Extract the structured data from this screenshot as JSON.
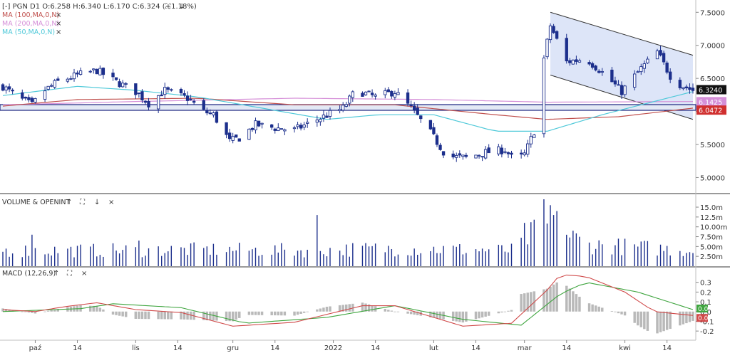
{
  "header": {
    "symbol": "PGN",
    "interval": "D1",
    "open": "O:6.258",
    "high": "H:6.340",
    "low": "L:6.170",
    "close": "C:6.324",
    "change": "(+1.18%)",
    "collapse_glyph": "[-]",
    "fit_glyph": "⛶",
    "down_glyph": "↓"
  },
  "indicators": [
    {
      "label": "MA (100,MA,0,N)",
      "color": "#c0504d"
    },
    {
      "label": "MA (200,MA,0,N)",
      "color": "#d58fd8"
    },
    {
      "label": "MA (50,MA,0,N)",
      "color": "#4fc9d9"
    }
  ],
  "close_glyph": "×",
  "volume_panel": {
    "title": "VOLUME & OPENINT",
    "up": "↑",
    "fit": "⛶",
    "down": "↓",
    "close": "×"
  },
  "macd_panel": {
    "title": "MACD (12,26,9)",
    "up": "↑",
    "fit": "⛶",
    "close": "×"
  },
  "colors": {
    "bar": "#1c2f8c",
    "ma100": "#c0504d",
    "ma200": "#d58fd8",
    "ma50": "#4fc9d9",
    "macd": "#d04a4a",
    "signal": "#3fa53f",
    "hist": "#b9b9b9",
    "channel_fill": "#d7e1f7",
    "support": "#1a237e"
  },
  "chart_data": [
    {
      "type": "candlestick",
      "y_axis_side": "right",
      "ylim": [
        4.8,
        7.6
      ],
      "yticks": [
        "7.5000",
        "7.0000",
        "6.5000",
        "6.0000",
        "5.5000",
        "5.0000"
      ],
      "x_ticks": [
        "paź",
        "14",
        "lis",
        "14",
        "gru",
        "14",
        "2022",
        "14",
        "lut",
        "14",
        "mar",
        "14",
        "kwi",
        "14"
      ],
      "x_tick_dates": [
        "2021-10-01",
        "2021-10-14",
        "2021-11-01",
        "2021-11-14",
        "2021-12-01",
        "2021-12-14",
        "2022-01-01",
        "2022-01-14",
        "2022-02-01",
        "2022-02-14",
        "2022-03-01",
        "2022-03-14",
        "2022-04-01",
        "2022-04-14"
      ],
      "x_range_dates": [
        "2021-09-21",
        "2022-04-22"
      ],
      "close_anchors": [
        {
          "date": "2021-09-21",
          "close": 6.38
        },
        {
          "date": "2021-09-26",
          "close": 6.2
        },
        {
          "date": "2021-09-30",
          "close": 6.1
        },
        {
          "date": "2021-10-04",
          "close": 6.32
        },
        {
          "date": "2021-10-08",
          "close": 6.45
        },
        {
          "date": "2021-10-14",
          "close": 6.55
        },
        {
          "date": "2021-10-20",
          "close": 6.62
        },
        {
          "date": "2021-10-26",
          "close": 6.45
        },
        {
          "date": "2021-11-01",
          "close": 6.3
        },
        {
          "date": "2021-11-05",
          "close": 6.12
        },
        {
          "date": "2021-11-10",
          "close": 6.32
        },
        {
          "date": "2021-11-17",
          "close": 6.2
        },
        {
          "date": "2021-11-22",
          "close": 6.0
        },
        {
          "date": "2021-11-25",
          "close": 5.95
        },
        {
          "date": "2021-11-30",
          "close": 5.55
        },
        {
          "date": "2021-12-03",
          "close": 5.6
        },
        {
          "date": "2021-12-08",
          "close": 5.8
        },
        {
          "date": "2021-12-14",
          "close": 5.75
        },
        {
          "date": "2021-12-20",
          "close": 5.72
        },
        {
          "date": "2021-12-28",
          "close": 5.9
        },
        {
          "date": "2022-01-04",
          "close": 6.05
        },
        {
          "date": "2022-01-08",
          "close": 6.32
        },
        {
          "date": "2022-01-14",
          "close": 6.22
        },
        {
          "date": "2022-01-20",
          "close": 6.3
        },
        {
          "date": "2022-01-25",
          "close": 6.05
        },
        {
          "date": "2022-01-31",
          "close": 5.68
        },
        {
          "date": "2022-02-05",
          "close": 5.32
        },
        {
          "date": "2022-02-11",
          "close": 5.3
        },
        {
          "date": "2022-02-17",
          "close": 5.38
        },
        {
          "date": "2022-02-23",
          "close": 5.42
        },
        {
          "date": "2022-02-26",
          "close": 5.25
        },
        {
          "date": "2022-03-01",
          "close": 5.35
        },
        {
          "date": "2022-03-04",
          "close": 5.7
        },
        {
          "date": "2022-03-07",
          "close": 6.8
        },
        {
          "date": "2022-03-09",
          "close": 7.3
        },
        {
          "date": "2022-03-14",
          "close": 6.75
        },
        {
          "date": "2022-03-20",
          "close": 6.8
        },
        {
          "date": "2022-03-26",
          "close": 6.55
        },
        {
          "date": "2022-03-31",
          "close": 6.3
        },
        {
          "date": "2022-04-06",
          "close": 6.65
        },
        {
          "date": "2022-04-11",
          "close": 6.9
        },
        {
          "date": "2022-04-16",
          "close": 6.45
        },
        {
          "date": "2022-04-22",
          "close": 6.32
        }
      ],
      "ma50_anchors": [
        {
          "date": "2021-09-21",
          "value": 6.24
        },
        {
          "date": "2021-10-14",
          "value": 6.38
        },
        {
          "date": "2021-11-01",
          "value": 6.32
        },
        {
          "date": "2021-11-20",
          "value": 6.22
        },
        {
          "date": "2021-12-10",
          "value": 6.05
        },
        {
          "date": "2021-12-30",
          "value": 5.88
        },
        {
          "date": "2022-01-15",
          "value": 5.95
        },
        {
          "date": "2022-02-01",
          "value": 5.95
        },
        {
          "date": "2022-02-20",
          "value": 5.7
        },
        {
          "date": "2022-03-08",
          "value": 5.7
        },
        {
          "date": "2022-03-25",
          "value": 5.95
        },
        {
          "date": "2022-04-10",
          "value": 6.15
        },
        {
          "date": "2022-04-22",
          "value": 6.3
        }
      ],
      "ma100_anchors": [
        {
          "date": "2021-09-21",
          "value": 6.08
        },
        {
          "date": "2021-10-14",
          "value": 6.18
        },
        {
          "date": "2021-11-20",
          "value": 6.2
        },
        {
          "date": "2021-12-20",
          "value": 6.1
        },
        {
          "date": "2022-01-20",
          "value": 6.1
        },
        {
          "date": "2022-02-20",
          "value": 5.95
        },
        {
          "date": "2022-03-08",
          "value": 5.88
        },
        {
          "date": "2022-03-30",
          "value": 5.92
        },
        {
          "date": "2022-04-22",
          "value": 6.05
        }
      ],
      "ma200_anchors": [
        {
          "date": "2021-09-21",
          "value": 6.1
        },
        {
          "date": "2021-11-01",
          "value": 6.15
        },
        {
          "date": "2021-12-20",
          "value": 6.2
        },
        {
          "date": "2022-02-01",
          "value": 6.18
        },
        {
          "date": "2022-03-08",
          "value": 6.14
        },
        {
          "date": "2022-04-22",
          "value": 6.15
        }
      ],
      "support_level": 6.06,
      "channel": {
        "upper": [
          {
            "date": "2022-03-09",
            "value": 7.5
          },
          {
            "date": "2022-04-22",
            "value": 6.85
          }
        ],
        "lower": [
          {
            "date": "2022-03-09",
            "value": 6.55
          },
          {
            "date": "2022-04-22",
            "value": 5.88
          }
        ]
      },
      "price_labels": [
        {
          "text": "6.3240",
          "value": 6.324,
          "color": "#111111"
        },
        {
          "text": "6.1425",
          "value": 6.1425,
          "color": "#d58fd8"
        },
        {
          "text": "6.0472",
          "value": 6.0472,
          "color": "#d0302f"
        }
      ]
    },
    {
      "type": "bar",
      "title": "VOLUME & OPENINT",
      "ylim": [
        0,
        17
      ],
      "yticks": [
        "15.0m",
        "12.5m",
        "10.00m",
        "7.50m",
        "5.00m",
        "2.50m"
      ],
      "ytick_values": [
        15,
        12.5,
        10,
        7.5,
        5,
        2.5
      ],
      "volume_units": "millions",
      "volume_anchors": [
        {
          "date": "2021-09-21",
          "value": 4.0
        },
        {
          "date": "2021-10-15",
          "value": 4.0
        },
        {
          "date": "2021-11-25",
          "value": 4.2
        },
        {
          "date": "2021-12-23",
          "value": 4.0
        },
        {
          "date": "2022-01-20",
          "value": 4.5
        },
        {
          "date": "2022-02-25",
          "value": 4.0
        },
        {
          "date": "2022-03-07",
          "value": 10.5
        },
        {
          "date": "2022-03-12",
          "value": 9.0
        },
        {
          "date": "2022-03-20",
          "value": 5.5
        },
        {
          "date": "2022-04-22",
          "value": 4.0
        }
      ],
      "volume_spikes": [
        {
          "date": "2021-09-30",
          "value": 8.0
        },
        {
          "date": "2021-10-10",
          "value": 8.0
        },
        {
          "date": "2021-11-02",
          "value": 6.5
        },
        {
          "date": "2021-11-28",
          "value": 7.5
        },
        {
          "date": "2021-12-27",
          "value": 13.0
        },
        {
          "date": "2022-03-01",
          "value": 11.0
        },
        {
          "date": "2022-03-07",
          "value": 17.0
        },
        {
          "date": "2022-03-09",
          "value": 15.5
        },
        {
          "date": "2022-03-11",
          "value": 14.0
        },
        {
          "date": "2022-03-20",
          "value": 15.0
        }
      ]
    },
    {
      "type": "line",
      "title": "MACD (12,26,9)",
      "ylim": [
        -0.25,
        0.4
      ],
      "yticks": [
        "0.3",
        "0.2",
        "0.1",
        "0.0",
        "-0.1",
        "-0.2"
      ],
      "ytick_values": [
        0.3,
        0.2,
        0.1,
        0.0,
        -0.1,
        -0.2
      ],
      "macd_anchors": [
        {
          "date": "2021-09-21",
          "value": 0.02
        },
        {
          "date": "2021-10-01",
          "value": 0.0
        },
        {
          "date": "2021-10-10",
          "value": 0.05
        },
        {
          "date": "2021-10-20",
          "value": 0.09
        },
        {
          "date": "2021-11-01",
          "value": 0.02
        },
        {
          "date": "2021-11-15",
          "value": -0.01
        },
        {
          "date": "2021-12-01",
          "value": -0.15
        },
        {
          "date": "2021-12-20",
          "value": -0.11
        },
        {
          "date": "2022-01-10",
          "value": 0.06
        },
        {
          "date": "2022-01-20",
          "value": 0.06
        },
        {
          "date": "2022-02-10",
          "value": -0.15
        },
        {
          "date": "2022-02-25",
          "value": -0.12
        },
        {
          "date": "2022-03-08",
          "value": 0.22
        },
        {
          "date": "2022-03-12",
          "value": 0.38
        },
        {
          "date": "2022-03-20",
          "value": 0.36
        },
        {
          "date": "2022-04-01",
          "value": 0.2
        },
        {
          "date": "2022-04-10",
          "value": 0.0
        },
        {
          "date": "2022-04-22",
          "value": -0.04
        }
      ],
      "signal_anchors": [
        {
          "date": "2021-09-21",
          "value": 0.0
        },
        {
          "date": "2021-10-15",
          "value": 0.03
        },
        {
          "date": "2021-10-25",
          "value": 0.08
        },
        {
          "date": "2021-11-15",
          "value": 0.04
        },
        {
          "date": "2021-12-05",
          "value": -0.12
        },
        {
          "date": "2021-12-30",
          "value": -0.06
        },
        {
          "date": "2022-01-20",
          "value": 0.06
        },
        {
          "date": "2022-02-10",
          "value": -0.08
        },
        {
          "date": "2022-02-28",
          "value": -0.14
        },
        {
          "date": "2022-03-12",
          "value": 0.18
        },
        {
          "date": "2022-03-20",
          "value": 0.3
        },
        {
          "date": "2022-04-05",
          "value": 0.2
        },
        {
          "date": "2022-04-22",
          "value": 0.02
        }
      ],
      "last_labels": [
        {
          "text": "0.0",
          "value": 0.02,
          "color": "#3fa53f"
        },
        {
          "text": "0.0",
          "value": -0.04,
          "color": "#d04a4a"
        }
      ]
    }
  ]
}
